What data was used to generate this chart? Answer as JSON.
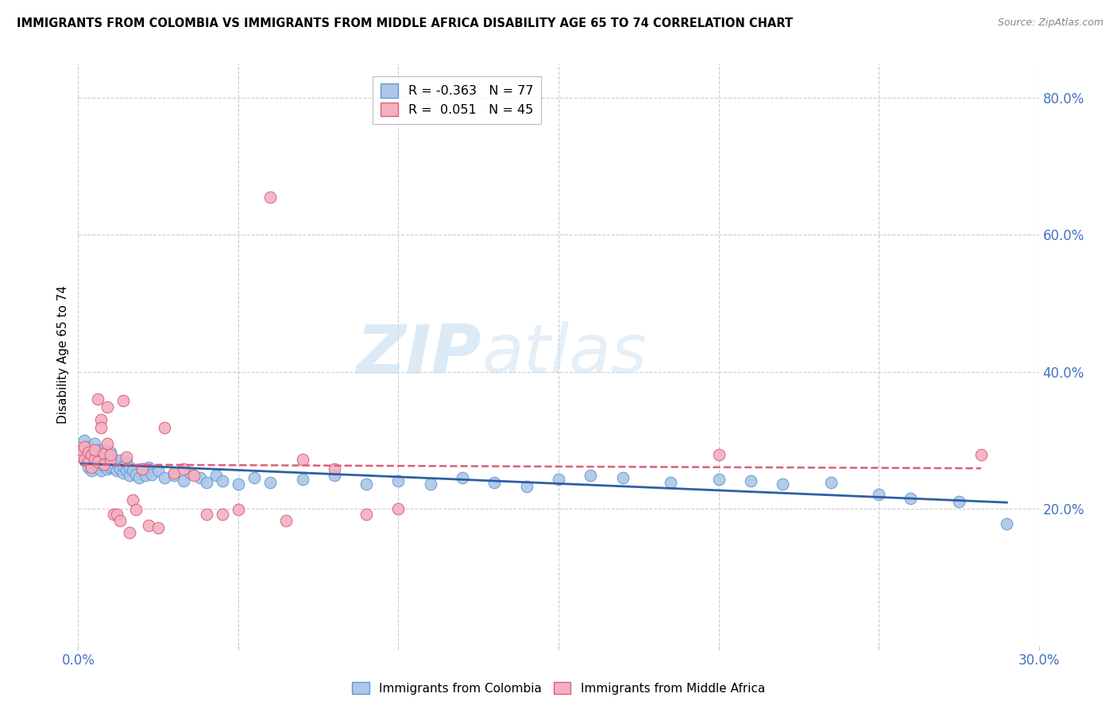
{
  "title": "IMMIGRANTS FROM COLOMBIA VS IMMIGRANTS FROM MIDDLE AFRICA DISABILITY AGE 65 TO 74 CORRELATION CHART",
  "source": "Source: ZipAtlas.com",
  "ylabel": "Disability Age 65 to 74",
  "xlim": [
    0.0,
    0.3
  ],
  "ylim": [
    0.0,
    0.85
  ],
  "xtick_positions": [
    0.0,
    0.05,
    0.1,
    0.15,
    0.2,
    0.25,
    0.3
  ],
  "ytick_positions": [
    0.2,
    0.4,
    0.6,
    0.8
  ],
  "ytick_labels": [
    "20.0%",
    "40.0%",
    "60.0%",
    "80.0%"
  ],
  "colombia_color": "#aec6e8",
  "colombia_edge": "#5b9bd5",
  "middle_africa_color": "#f4afc0",
  "middle_africa_edge": "#d9607a",
  "trend_colombia_color": "#2e5fa3",
  "trend_middle_africa_color": "#d9607a",
  "legend_r_colombia": "R = -0.363",
  "legend_n_colombia": "N = 77",
  "legend_r_africa": "R =  0.051",
  "legend_n_africa": "N = 45",
  "watermark_zip": "ZIP",
  "watermark_atlas": "atlas",
  "colombia_legend": "Immigrants from Colombia",
  "africa_legend": "Immigrants from Middle Africa",
  "colombia_x": [
    0.001,
    0.002,
    0.002,
    0.003,
    0.003,
    0.003,
    0.004,
    0.004,
    0.004,
    0.005,
    0.005,
    0.005,
    0.006,
    0.006,
    0.006,
    0.007,
    0.007,
    0.007,
    0.008,
    0.008,
    0.008,
    0.009,
    0.009,
    0.01,
    0.01,
    0.01,
    0.011,
    0.011,
    0.012,
    0.012,
    0.013,
    0.013,
    0.014,
    0.014,
    0.015,
    0.015,
    0.016,
    0.016,
    0.017,
    0.018,
    0.019,
    0.02,
    0.021,
    0.022,
    0.023,
    0.025,
    0.027,
    0.03,
    0.033,
    0.035,
    0.038,
    0.04,
    0.043,
    0.045,
    0.05,
    0.055,
    0.06,
    0.07,
    0.08,
    0.09,
    0.1,
    0.11,
    0.12,
    0.13,
    0.14,
    0.15,
    0.16,
    0.17,
    0.185,
    0.2,
    0.21,
    0.22,
    0.235,
    0.25,
    0.26,
    0.275,
    0.29
  ],
  "colombia_y": [
    0.285,
    0.27,
    0.3,
    0.26,
    0.28,
    0.29,
    0.255,
    0.27,
    0.285,
    0.265,
    0.28,
    0.295,
    0.26,
    0.27,
    0.285,
    0.255,
    0.268,
    0.278,
    0.262,
    0.272,
    0.285,
    0.258,
    0.275,
    0.26,
    0.272,
    0.282,
    0.26,
    0.272,
    0.255,
    0.268,
    0.258,
    0.27,
    0.252,
    0.262,
    0.255,
    0.268,
    0.248,
    0.26,
    0.255,
    0.25,
    0.245,
    0.258,
    0.248,
    0.26,
    0.25,
    0.255,
    0.245,
    0.248,
    0.24,
    0.252,
    0.245,
    0.238,
    0.248,
    0.24,
    0.235,
    0.245,
    0.238,
    0.242,
    0.248,
    0.235,
    0.24,
    0.235,
    0.245,
    0.238,
    0.232,
    0.242,
    0.248,
    0.245,
    0.238,
    0.242,
    0.24,
    0.235,
    0.238,
    0.22,
    0.215,
    0.21,
    0.178
  ],
  "africa_x": [
    0.001,
    0.002,
    0.002,
    0.003,
    0.003,
    0.004,
    0.004,
    0.005,
    0.005,
    0.006,
    0.006,
    0.007,
    0.007,
    0.008,
    0.008,
    0.009,
    0.009,
    0.01,
    0.01,
    0.011,
    0.012,
    0.013,
    0.014,
    0.015,
    0.016,
    0.017,
    0.018,
    0.02,
    0.022,
    0.025,
    0.027,
    0.03,
    0.033,
    0.036,
    0.04,
    0.045,
    0.05,
    0.06,
    0.065,
    0.07,
    0.08,
    0.09,
    0.1,
    0.2,
    0.282
  ],
  "africa_y": [
    0.285,
    0.272,
    0.29,
    0.268,
    0.282,
    0.26,
    0.278,
    0.272,
    0.285,
    0.268,
    0.36,
    0.33,
    0.318,
    0.28,
    0.265,
    0.348,
    0.295,
    0.272,
    0.278,
    0.192,
    0.192,
    0.182,
    0.358,
    0.275,
    0.165,
    0.212,
    0.198,
    0.258,
    0.175,
    0.172,
    0.318,
    0.252,
    0.258,
    0.248,
    0.192,
    0.192,
    0.198,
    0.655,
    0.182,
    0.272,
    0.258,
    0.192,
    0.2,
    0.278,
    0.278
  ]
}
